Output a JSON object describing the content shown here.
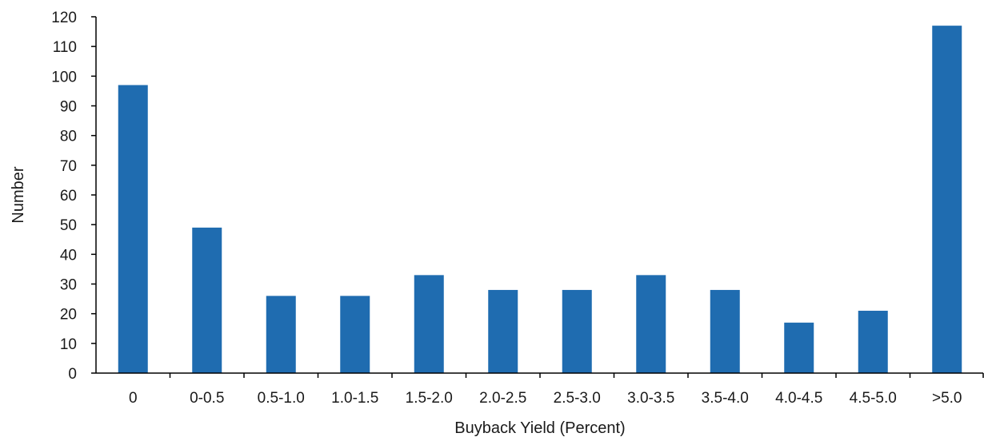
{
  "chart_data": {
    "type": "bar",
    "title": "",
    "xlabel": "Buyback Yield (Percent)",
    "ylabel": "Number",
    "categories": [
      "0",
      "0-0.5",
      "0.5-1.0",
      "1.0-1.5",
      "1.5-2.0",
      "2.0-2.5",
      "2.5-3.0",
      "3.0-3.5",
      "3.5-4.0",
      "4.0-4.5",
      "4.5-5.0",
      ">5.0"
    ],
    "values": [
      97,
      49,
      26,
      26,
      33,
      28,
      28,
      33,
      28,
      17,
      21,
      117
    ],
    "ylim": [
      0,
      120
    ],
    "yticks": [
      0,
      10,
      20,
      30,
      40,
      50,
      60,
      70,
      80,
      90,
      100,
      110,
      120
    ],
    "grid": false,
    "legend": "none",
    "bar_color": "#1f6cb0"
  }
}
